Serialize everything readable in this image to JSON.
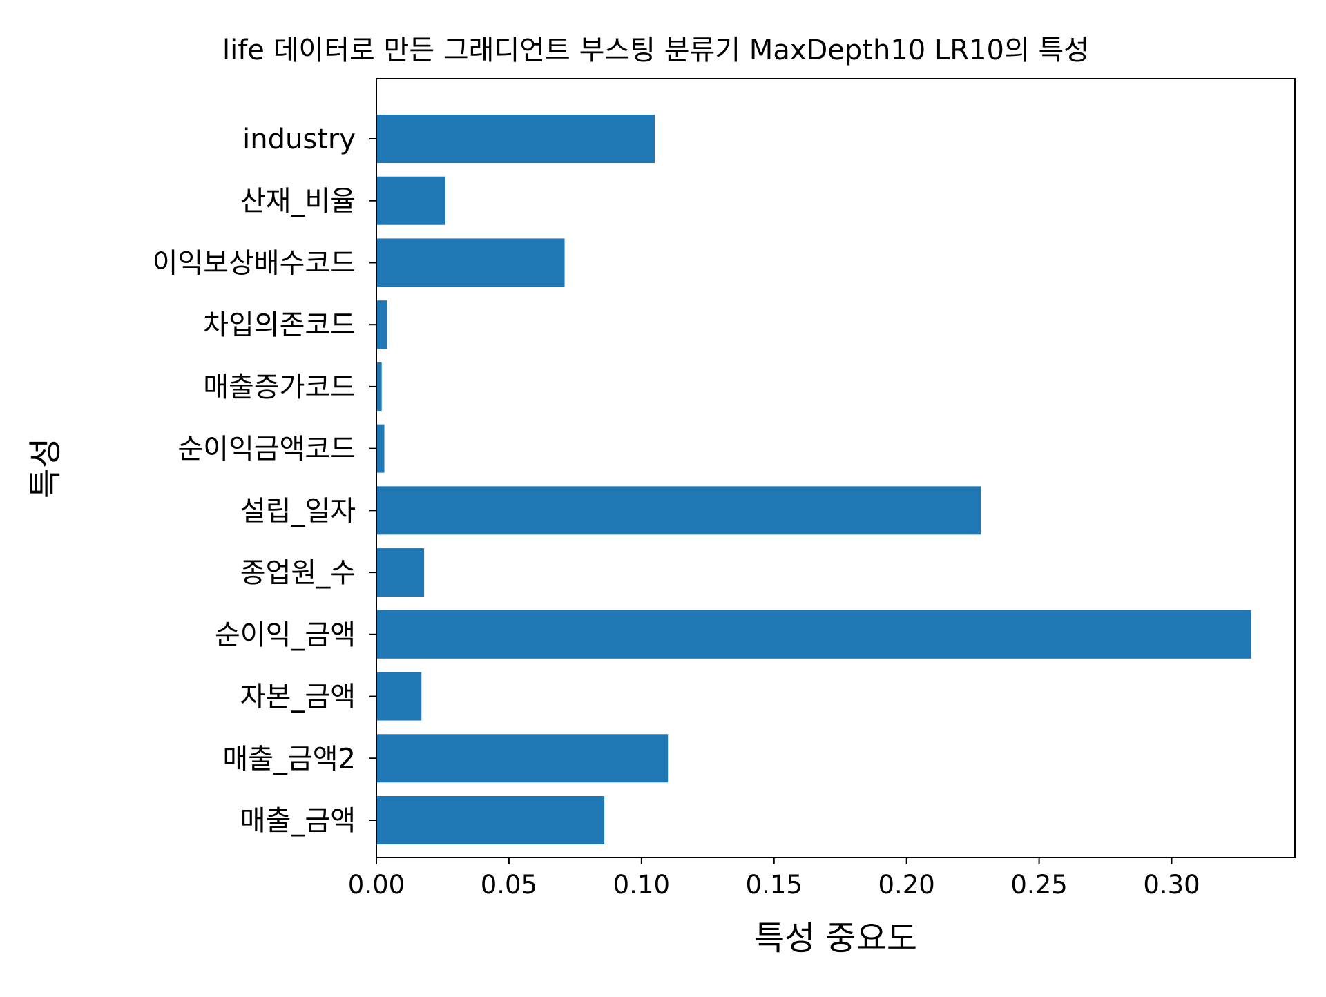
{
  "chart_data": {
    "type": "bar",
    "orientation": "horizontal",
    "title": "life 데이터로 만든 그래디언트 부스팅 분류기 MaxDepth10 LR10의 특성",
    "xlabel": "특성 중요도",
    "ylabel": "특성",
    "categories": [
      "매출_금액",
      "매출_금액2",
      "자본_금액",
      "순이익_금액",
      "종업원_수",
      "설립_일자",
      "순이익금액코드",
      "매출증가코드",
      "차입의존코드",
      "이익보상배수코드",
      "산재_비율",
      "industry"
    ],
    "values": [
      0.086,
      0.11,
      0.017,
      0.33,
      0.018,
      0.228,
      0.003,
      0.002,
      0.004,
      0.071,
      0.026,
      0.105
    ],
    "xlim": [
      0,
      0.3465
    ],
    "xticks": [
      "0.00",
      "0.05",
      "0.10",
      "0.15",
      "0.20",
      "0.25",
      "0.30"
    ],
    "xtick_values": [
      0,
      0.05,
      0.1,
      0.15,
      0.2,
      0.25,
      0.3
    ],
    "grid": false,
    "legend": "none",
    "bar_color": "#1f77b4"
  }
}
